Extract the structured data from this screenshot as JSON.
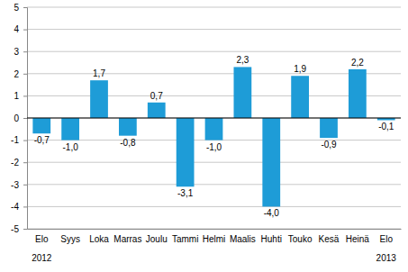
{
  "chart_data": {
    "type": "bar",
    "categories": [
      "Elo",
      "Syys",
      "Loka",
      "Marras",
      "Joulu",
      "Tammi",
      "Helmi",
      "Maalis",
      "Huhti",
      "Touko",
      "Kesä",
      "Heinä",
      "Elo"
    ],
    "years": [
      "2012",
      null,
      null,
      null,
      null,
      null,
      null,
      null,
      null,
      null,
      null,
      null,
      "2013"
    ],
    "values": [
      -0.7,
      -1.0,
      1.7,
      -0.8,
      0.7,
      -3.1,
      -1.0,
      2.3,
      -4.0,
      1.9,
      -0.9,
      2.2,
      -0.1
    ],
    "value_labels": [
      "-0,7",
      "-1,0",
      "1,7",
      "-0,8",
      "0,7",
      "-3,1",
      "-1,0",
      "2,3",
      "-4,0",
      "1,9",
      "-0,9",
      "2,2",
      "-0,1"
    ],
    "color": "#1e9cd7",
    "ylim": [
      -5,
      5
    ],
    "yticks": [
      -5,
      -4,
      -3,
      -2,
      -1,
      0,
      1,
      2,
      3,
      4,
      5
    ],
    "grid": true,
    "data_labels": true
  }
}
